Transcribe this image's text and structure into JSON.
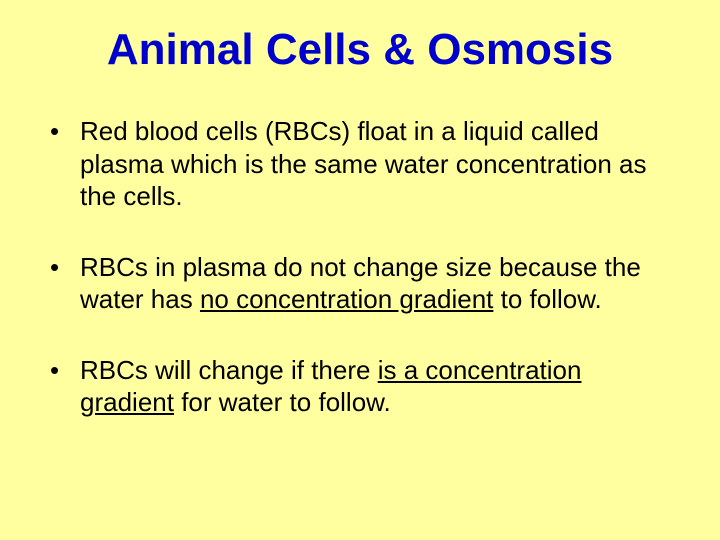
{
  "background_color": "#ffffa0",
  "title": {
    "text": "Animal Cells & Osmosis",
    "color": "#0000cc",
    "fontsize": 44,
    "font_weight": "bold",
    "align": "center"
  },
  "body": {
    "color": "#000000",
    "fontsize": 26,
    "font_family": "Comic Sans MS"
  },
  "bullets": [
    {
      "pre": "Red blood cells (RBCs) float in a liquid called plasma which is the same water concentration as the cells.",
      "underlined": "",
      "post": ""
    },
    {
      "pre": "RBCs in plasma do not change size because the water has ",
      "underlined": "no concentration gradient",
      "post": " to follow."
    },
    {
      "pre": "RBCs will change if there ",
      "underlined": "is a concentration gradient",
      "post": " for water to follow."
    }
  ]
}
